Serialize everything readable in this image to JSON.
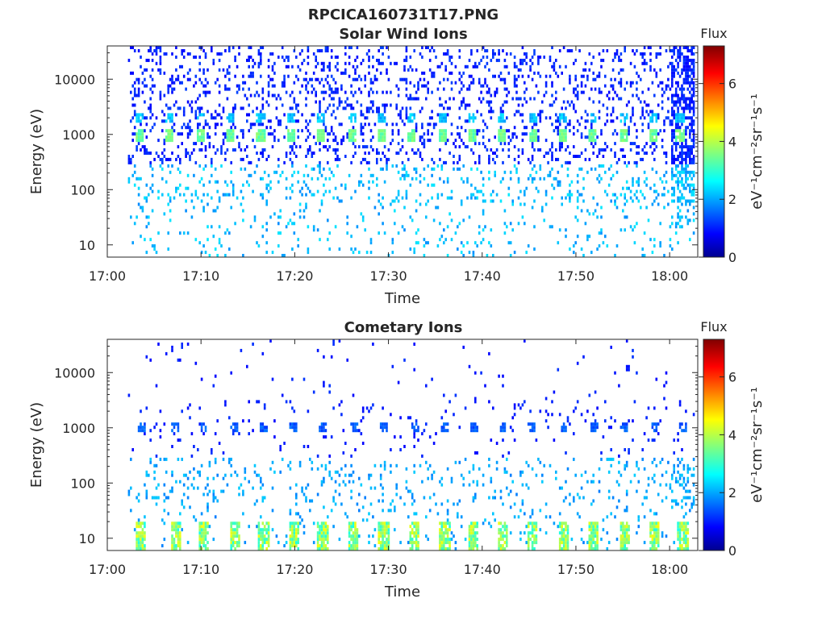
{
  "figure_title": "RPCICA160731T17.PNG",
  "chart_data": [
    {
      "type": "heatmap",
      "title": "Solar Wind Ions",
      "xlabel": "Time",
      "ylabel": "Energy (eV)",
      "x_ticks": [
        "17:00",
        "17:10",
        "17:20",
        "17:30",
        "17:40",
        "17:50",
        "18:00"
      ],
      "x_range_minutes": [
        0,
        63
      ],
      "y_scale": "log",
      "y_ticks": [
        "10",
        "100",
        "1000",
        "10000"
      ],
      "ylim": [
        6,
        40000
      ],
      "colorbar": {
        "title": "Flux",
        "label": "eV⁻¹cm⁻²sr⁻¹s⁻¹",
        "ticks": [
          "0",
          "2",
          "4",
          "6"
        ],
        "range": [
          0,
          7.3
        ],
        "colormap": "jet"
      },
      "features": {
        "peak_energy_eV": 1000,
        "peak_flux": 3.5,
        "pulse_times_minutes": [
          3.3,
          6.5,
          9.8,
          13.0,
          16.3,
          19.5,
          22.7,
          26.0,
          29.2,
          32.4,
          35.7,
          38.9,
          42.0,
          45.3,
          48.5,
          51.7,
          55.0,
          58.2,
          61.0
        ]
      }
    },
    {
      "type": "heatmap",
      "title": "Cometary Ions",
      "xlabel": "Time",
      "ylabel": "Energy (eV)",
      "x_ticks": [
        "17:00",
        "17:10",
        "17:20",
        "17:30",
        "17:40",
        "17:50",
        "18:00"
      ],
      "x_range_minutes": [
        0,
        63
      ],
      "y_scale": "log",
      "y_ticks": [
        "10",
        "100",
        "1000",
        "10000"
      ],
      "ylim": [
        6,
        40000
      ],
      "colorbar": {
        "title": "Flux",
        "label": "eV⁻¹cm⁻²sr⁻¹s⁻¹",
        "ticks": [
          "0",
          "2",
          "4",
          "6"
        ],
        "range": [
          0,
          7.3
        ],
        "colormap": "jet"
      },
      "features": {
        "peak_energy_eV": 10,
        "peak_flux": 4.5,
        "pulse_times_minutes": [
          3.5,
          7.2,
          10.2,
          13.5,
          16.6,
          19.8,
          22.9,
          26.2,
          29.4,
          32.7,
          35.9,
          39.0,
          42.1,
          45.2,
          48.6,
          51.8,
          55.1,
          58.3,
          61.3
        ]
      }
    }
  ]
}
